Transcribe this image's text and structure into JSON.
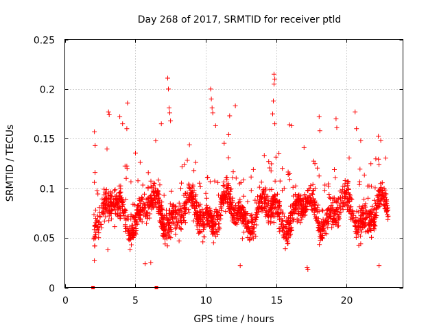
{
  "chart_data": {
    "type": "scatter",
    "title": "Day 268 of 2017, SRMTID for receiver ptld",
    "xlabel": "GPS time / hours",
    "ylabel": "SRMTID / TECUs",
    "xlim": [
      0,
      24
    ],
    "ylim": [
      0,
      0.25
    ],
    "xticks": [
      0,
      5,
      10,
      15,
      20
    ],
    "xtick_labels": [
      "0",
      "5",
      "10",
      "15",
      "20"
    ],
    "yticks": [
      0,
      0.05,
      0.1,
      0.15,
      0.2,
      0.25
    ],
    "ytick_labels": [
      "0",
      "0.05",
      "0.1",
      "0.15",
      "0.2",
      "0.25"
    ],
    "grid": true,
    "marker": "plus",
    "color": "#ff0000",
    "zero_markers": [
      {
        "x": 2.0,
        "y": 0
      },
      {
        "x": 6.5,
        "y": 0
      }
    ],
    "highlights": [
      {
        "x": 2.1,
        "y": 0.157
      },
      {
        "x": 2.15,
        "y": 0.143
      },
      {
        "x": 2.1,
        "y": 0.027
      },
      {
        "x": 3.1,
        "y": 0.177
      },
      {
        "x": 3.15,
        "y": 0.174
      },
      {
        "x": 3.9,
        "y": 0.172
      },
      {
        "x": 4.1,
        "y": 0.165
      },
      {
        "x": 4.45,
        "y": 0.186
      },
      {
        "x": 4.4,
        "y": 0.16
      },
      {
        "x": 6.85,
        "y": 0.165
      },
      {
        "x": 7.3,
        "y": 0.211
      },
      {
        "x": 7.35,
        "y": 0.2
      },
      {
        "x": 7.4,
        "y": 0.181
      },
      {
        "x": 7.45,
        "y": 0.176
      },
      {
        "x": 7.5,
        "y": 0.168
      },
      {
        "x": 10.35,
        "y": 0.2
      },
      {
        "x": 10.4,
        "y": 0.19
      },
      {
        "x": 10.45,
        "y": 0.181
      },
      {
        "x": 10.5,
        "y": 0.176
      },
      {
        "x": 10.7,
        "y": 0.163
      },
      {
        "x": 12.1,
        "y": 0.183
      },
      {
        "x": 11.7,
        "y": 0.173
      },
      {
        "x": 14.85,
        "y": 0.215
      },
      {
        "x": 14.9,
        "y": 0.21
      },
      {
        "x": 14.85,
        "y": 0.205
      },
      {
        "x": 14.8,
        "y": 0.188
      },
      {
        "x": 14.75,
        "y": 0.175
      },
      {
        "x": 14.9,
        "y": 0.165
      },
      {
        "x": 15.95,
        "y": 0.164
      },
      {
        "x": 16.1,
        "y": 0.163
      },
      {
        "x": 18.05,
        "y": 0.172
      },
      {
        "x": 18.1,
        "y": 0.158
      },
      {
        "x": 19.25,
        "y": 0.17
      },
      {
        "x": 19.3,
        "y": 0.161
      },
      {
        "x": 20.6,
        "y": 0.177
      },
      {
        "x": 20.7,
        "y": 0.16
      },
      {
        "x": 21.0,
        "y": 0.148
      },
      {
        "x": 17.25,
        "y": 0.018
      },
      {
        "x": 17.2,
        "y": 0.02
      },
      {
        "x": 22.3,
        "y": 0.022
      },
      {
        "x": 12.45,
        "y": 0.022
      },
      {
        "x": 5.7,
        "y": 0.024
      },
      {
        "x": 6.1,
        "y": 0.025
      },
      {
        "x": 3.05,
        "y": 0.038
      }
    ],
    "bulk": {
      "x_start": 2.05,
      "x_end": 22.95,
      "typical_y_range": [
        0.03,
        0.14
      ],
      "center_y": 0.075,
      "approx_points": 2100
    }
  }
}
